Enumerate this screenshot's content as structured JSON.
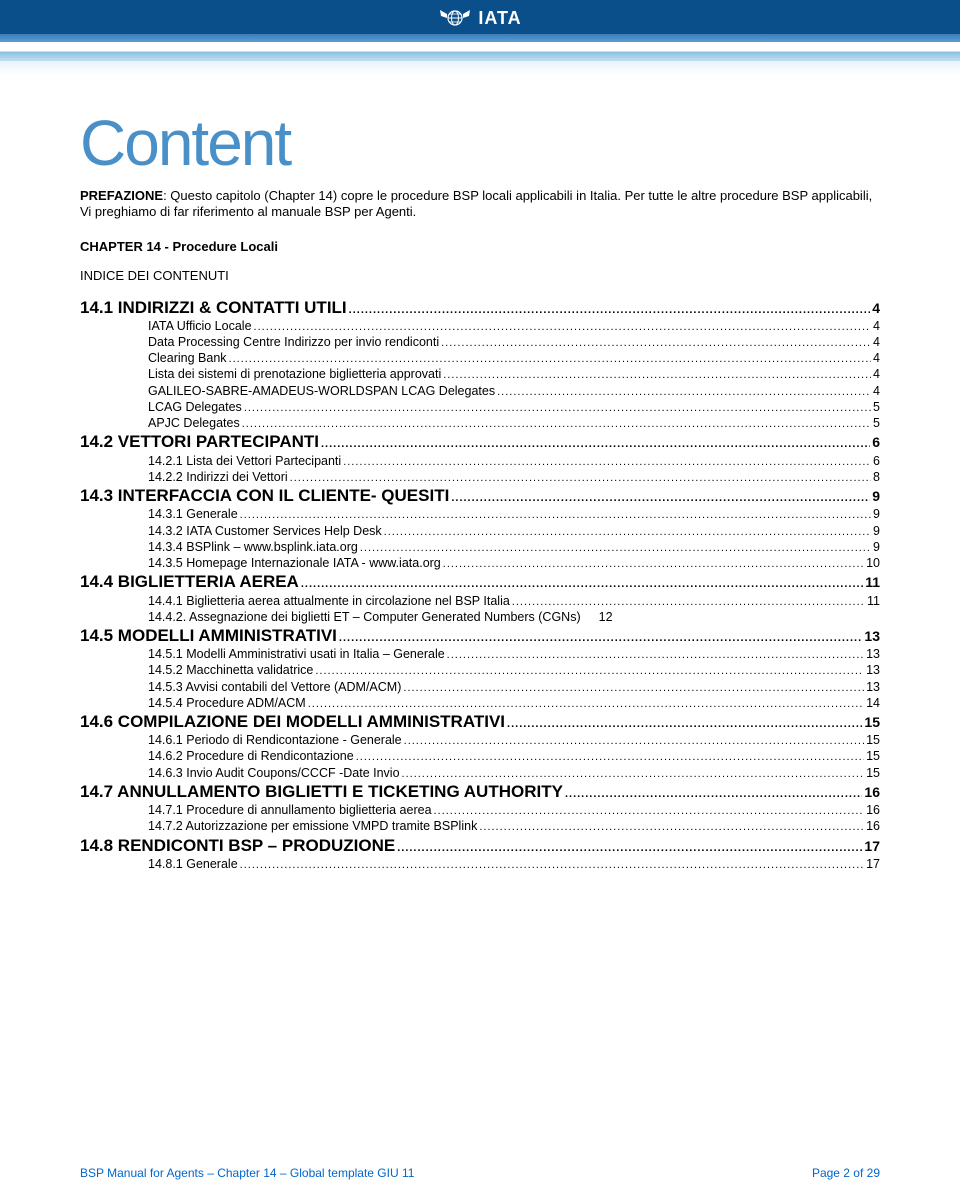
{
  "header": {
    "logo_text": "IATA"
  },
  "content_title": "Content",
  "preface": {
    "bold_lead": "PREFAZIONE",
    "rest": ": Questo capitolo (Chapter 14) copre le procedure BSP locali applicabili in Italia. Per tutte le altre procedure BSP applicabili, Vi preghiamo di far riferimento al manuale BSP per Agenti."
  },
  "chapter_line": "CHAPTER 14 - Procedure Locali",
  "indice_line": "INDICE DEI CONTENUTI",
  "toc": [
    {
      "level": 1,
      "label": "14.1  INDIRIZZI & CONTATTI UTILI",
      "page": "4"
    },
    {
      "level": 2,
      "label": "IATA Ufficio Locale",
      "page": "4"
    },
    {
      "level": 2,
      "label": "Data Processing Centre     Indirizzo per invio rendiconti",
      "page": "4"
    },
    {
      "level": 2,
      "label": "Clearing Bank",
      "page": "4"
    },
    {
      "level": 2,
      "label": "Lista dei sistemi di prenotazione biglietteria approvati",
      "page": "4"
    },
    {
      "level": 2,
      "label": "GALILEO-SABRE-AMADEUS-WORLDSPAN LCAG Delegates",
      "page": "4"
    },
    {
      "level": 2,
      "label": "LCAG Delegates",
      "page": "5"
    },
    {
      "level": 2,
      "label": "APJC Delegates",
      "page": "5"
    },
    {
      "level": 1,
      "label": "14.2 VETTORI PARTECIPANTI",
      "page": "6"
    },
    {
      "level": 2,
      "label": "14.2.1 Lista dei Vettori Partecipanti",
      "page": "6"
    },
    {
      "level": 2,
      "label": "14.2.2 Indirizzi dei Vettori",
      "page": "8"
    },
    {
      "level": 1,
      "label": "14.3 INTERFACCIA CON IL CLIENTE- QUESITI",
      "page": "9"
    },
    {
      "level": 2,
      "label": "14.3.1 Generale",
      "page": "9"
    },
    {
      "level": 2,
      "label": "14.3.2 IATA Customer Services Help Desk",
      "page": "9"
    },
    {
      "level": 2,
      "label": "14.3.4 BSPlink – www.bsplink.iata.org",
      "page": "9"
    },
    {
      "level": 2,
      "label": "14.3.5 Homepage Internazionale IATA - www.iata.org",
      "page": "10"
    },
    {
      "level": 1,
      "label": "14.4 BIGLIETTERIA AEREA",
      "page": "11"
    },
    {
      "level": 2,
      "label": "14.4.1 Biglietteria aerea attualmente in circolazione nel BSP  Italia",
      "page": "11"
    },
    {
      "level": 2,
      "label": "14.4.2. Assegnazione dei biglietti ET – Computer Generated Numbers (CGNs)",
      "page": "12",
      "trailing_page": true
    },
    {
      "level": 1,
      "label": "14.5 MODELLI AMMINISTRATIVI",
      "page": "13"
    },
    {
      "level": 2,
      "label": "14.5.1 Modelli Amministrativi usati in Italia – Generale",
      "page": "13"
    },
    {
      "level": 2,
      "label": "14.5.2 Macchinetta validatrice",
      "page": "13"
    },
    {
      "level": 2,
      "label": "14.5.3 Avvisi contabili del Vettore (ADM/ACM)",
      "page": "13"
    },
    {
      "level": 2,
      "label": "14.5.4 Procedure ADM/ACM",
      "page": "14"
    },
    {
      "level": 1,
      "label": "14.6 COMPILAZIONE DEI MODELLI AMMINISTRATIVI",
      "page": "15"
    },
    {
      "level": 2,
      "label": "14.6.1 Periodo di Rendicontazione - Generale",
      "page": "15"
    },
    {
      "level": 2,
      "label": "14.6.2 Procedure di Rendicontazione",
      "page": "15"
    },
    {
      "level": 2,
      "label": "14.6.3 Invio Audit Coupons/CCCF -Date Invio",
      "page": "15"
    },
    {
      "level": 1,
      "label": "14.7 ANNULLAMENTO BIGLIETTI E TICKETING AUTHORITY",
      "page": "16"
    },
    {
      "level": 2,
      "label": "14.7.1 Procedure di annullamento biglietteria aerea",
      "page": "16"
    },
    {
      "level": 2,
      "label": "14.7.2 Autorizzazione per emissione VMPD tramite BSPlink",
      "page": "16"
    },
    {
      "level": 1,
      "label": "14.8 RENDICONTI BSP – PRODUZIONE",
      "page": "17"
    },
    {
      "level": 2,
      "label": "14.8.1 Generale",
      "page": "17"
    }
  ],
  "footer": {
    "left": "BSP Manual for Agents – Chapter 14 – Global template GIU 11",
    "right": "Page 2 of 29"
  },
  "colors": {
    "title_color": "#4a90c8",
    "footer_color": "#0066cc",
    "banner_dark": "#0a4f8a",
    "banner_mid": "#5a9dd0",
    "banner_light": "#c0dff0"
  }
}
